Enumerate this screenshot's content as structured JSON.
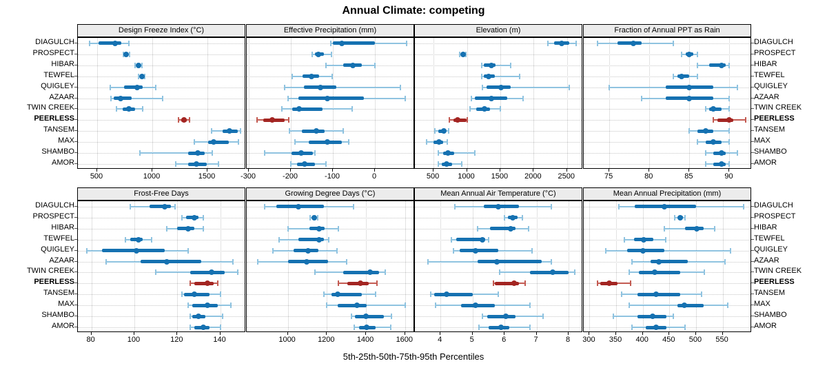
{
  "title": "Annual Climate: competing",
  "caption": "5th-25th-50th-75th-95th Percentiles",
  "chart_data": {
    "type": "dotplot-percentiles",
    "title": "Annual Climate: competing",
    "caption": "5th-25th-50th-75th-95th Percentiles",
    "percentiles": [
      5,
      25,
      50,
      75,
      95
    ],
    "sites": [
      "DIAGULCH",
      "PROSPECT",
      "HIBAR",
      "TEWFEL",
      "QUIGLEY",
      "AZAAR",
      "TWIN CREEK",
      "PEERLESS",
      "TANSEM",
      "MAX",
      "SHAMBO",
      "AMOR"
    ],
    "highlight_site": "PEERLESS",
    "colors": {
      "series_dark": "#1571b1",
      "series_light": "#8fc3e0",
      "highlight_dark": "#a32522",
      "highlight_light": "#c35b52"
    },
    "legend_position": "none",
    "grid": "dotted",
    "panels": [
      {
        "id": "design-freeze-index",
        "title": "Design Freeze Index (°C)",
        "xlim": [
          325,
          1850
        ],
        "tick_values": [
          500,
          1000,
          1500
        ],
        "tick_labels": [
          "500",
          "1000",
          "1500"
        ],
        "values": [
          [
            430,
            515,
            660,
            720,
            785
          ],
          [
            735,
            752,
            763,
            775,
            792
          ],
          [
            845,
            862,
            875,
            888,
            905
          ],
          [
            878,
            895,
            905,
            915,
            932
          ],
          [
            620,
            745,
            860,
            910,
            1030
          ],
          [
            625,
            650,
            715,
            810,
            1095
          ],
          [
            675,
            730,
            790,
            845,
            915
          ],
          [
            1240,
            1260,
            1285,
            1310,
            1335
          ],
          [
            1540,
            1640,
            1700,
            1775,
            1800
          ],
          [
            1380,
            1505,
            1555,
            1695,
            1780
          ],
          [
            890,
            1325,
            1410,
            1475,
            1545
          ],
          [
            1210,
            1325,
            1400,
            1495,
            1600
          ]
        ]
      },
      {
        "id": "effective-precipitation",
        "title": "Effective Precipitation (mm)",
        "xlim": [
          -305,
          95
        ],
        "tick_values": [
          -300,
          -200,
          -100,
          0
        ],
        "tick_labels": [
          "-300",
          "-200",
          "-100",
          "0"
        ],
        "values": [
          [
            -105,
            -100,
            -78,
            0,
            75
          ],
          [
            -150,
            -143,
            -135,
            -122,
            -103
          ],
          [
            -117,
            -76,
            -52,
            -32,
            0
          ],
          [
            -196,
            -172,
            -151,
            -133,
            -101
          ],
          [
            -215,
            -169,
            -129,
            -92,
            60
          ],
          [
            -207,
            -182,
            -114,
            -26,
            72
          ],
          [
            -222,
            -197,
            -180,
            -124,
            -55
          ],
          [
            -280,
            -265,
            -245,
            -215,
            -205
          ],
          [
            -203,
            -174,
            -140,
            -120,
            -76
          ],
          [
            -190,
            -158,
            -113,
            -79,
            -62
          ],
          [
            -262,
            -199,
            -175,
            -147,
            -142
          ],
          [
            -200,
            -185,
            -168,
            -142,
            -116
          ]
        ]
      },
      {
        "id": "elevation",
        "title": "Elevation (m)",
        "xlim": [
          220,
          2740
        ],
        "tick_values": [
          500,
          1000,
          1500,
          2000,
          2500
        ],
        "tick_labels": [
          "500",
          "1000",
          "1500",
          "2000",
          "2500"
        ],
        "values": [
          [
            2210,
            2310,
            2415,
            2530,
            2635
          ],
          [
            895,
            920,
            938,
            958,
            980
          ],
          [
            1225,
            1255,
            1370,
            1425,
            1655
          ],
          [
            1225,
            1250,
            1330,
            1415,
            1790
          ],
          [
            1235,
            1295,
            1515,
            1655,
            2530
          ],
          [
            1070,
            1120,
            1370,
            1600,
            1845
          ],
          [
            1050,
            1140,
            1260,
            1345,
            1500
          ],
          [
            740,
            795,
            860,
            990,
            1010
          ],
          [
            520,
            570,
            650,
            690,
            725
          ],
          [
            400,
            500,
            585,
            640,
            705
          ],
          [
            570,
            640,
            715,
            810,
            1120
          ],
          [
            570,
            620,
            700,
            775,
            920
          ]
        ]
      },
      {
        "id": "fraction-annual-ppt-rain",
        "title": "Fraction of Annual PPT as Rain",
        "xlim": [
          71.8,
          92.8
        ],
        "tick_values": [
          75,
          80,
          85,
          90
        ],
        "tick_labels": [
          "75",
          "80",
          "85",
          "90"
        ],
        "values": [
          [
            73.5,
            76,
            78,
            79,
            83
          ],
          [
            84,
            84.5,
            85,
            85.5,
            86
          ],
          [
            86,
            87.5,
            89,
            89.5,
            90
          ],
          [
            83,
            83.5,
            84,
            85,
            86
          ],
          [
            75,
            82,
            85,
            88,
            91
          ],
          [
            79,
            82,
            85,
            88,
            90
          ],
          [
            87,
            87.5,
            88,
            89,
            90
          ],
          [
            88,
            88.5,
            90,
            90.5,
            92
          ],
          [
            85,
            86,
            87,
            88,
            90
          ],
          [
            86,
            87,
            88,
            89,
            90
          ],
          [
            87,
            88,
            89,
            89.5,
            91
          ],
          [
            87,
            88,
            89,
            89.5,
            90
          ]
        ]
      },
      {
        "id": "frost-free-days",
        "title": "Frost-Free Days",
        "xlim": [
          73.7,
          152
        ],
        "tick_values": [
          80,
          100,
          120,
          140
        ],
        "tick_labels": [
          "80",
          "100",
          "120",
          "140"
        ],
        "values": [
          [
            98,
            107,
            114,
            117,
            119
          ],
          [
            122,
            124,
            128,
            130,
            132
          ],
          [
            115,
            120,
            125,
            128,
            132
          ],
          [
            96,
            98,
            102,
            104,
            108
          ],
          [
            78,
            85,
            101,
            114,
            125
          ],
          [
            87,
            103,
            115,
            131,
            146
          ],
          [
            110,
            126,
            136,
            142,
            148
          ],
          [
            126,
            128,
            134,
            137,
            139
          ],
          [
            122,
            123,
            128,
            135,
            140
          ],
          [
            125,
            127,
            134,
            139,
            145
          ],
          [
            126,
            127,
            130,
            133,
            141
          ],
          [
            126,
            128,
            132,
            135,
            140
          ]
        ]
      },
      {
        "id": "growing-degree-days",
        "title": "Growing Degree Days (°C)",
        "xlim": [
          790,
          1650
        ],
        "tick_values": [
          1000,
          1200,
          1400,
          1600
        ],
        "tick_labels": [
          "1000",
          "1200",
          "1400",
          "1600"
        ],
        "values": [
          [
            880,
            940,
            1055,
            1185,
            1335
          ],
          [
            1115,
            1125,
            1135,
            1145,
            1152
          ],
          [
            1000,
            1110,
            1160,
            1190,
            1260
          ],
          [
            955,
            1055,
            1160,
            1185,
            1210
          ],
          [
            925,
            1030,
            1105,
            1155,
            1250
          ],
          [
            845,
            1000,
            1095,
            1205,
            1300
          ],
          [
            1140,
            1285,
            1420,
            1465,
            1500
          ],
          [
            1260,
            1305,
            1370,
            1415,
            1455
          ],
          [
            1185,
            1225,
            1255,
            1380,
            1450
          ],
          [
            1200,
            1255,
            1355,
            1405,
            1600
          ],
          [
            1325,
            1345,
            1400,
            1490,
            1530
          ],
          [
            1340,
            1365,
            1405,
            1450,
            1525
          ]
        ]
      },
      {
        "id": "mean-annual-air-temperature",
        "title": "Mean Annual Air Temperature (°C)",
        "xlim": [
          3.2,
          8.45
        ],
        "tick_values": [
          4,
          5,
          6,
          7,
          8
        ],
        "tick_labels": [
          "4",
          "5",
          "6",
          "7",
          "8"
        ],
        "values": [
          [
            4.45,
            5.35,
            5.8,
            6.45,
            7.45
          ],
          [
            6.0,
            6.1,
            6.25,
            6.4,
            6.55
          ],
          [
            5.15,
            5.55,
            6.2,
            6.35,
            6.75
          ],
          [
            4.35,
            4.5,
            5.3,
            5.4,
            5.5
          ],
          [
            4.4,
            4.6,
            5.1,
            5.8,
            6.85
          ],
          [
            3.6,
            5.15,
            5.75,
            7.15,
            7.45
          ],
          [
            5.85,
            6.8,
            7.5,
            8.0,
            8.2
          ],
          [
            5.65,
            5.7,
            6.3,
            6.45,
            6.65
          ],
          [
            3.7,
            3.8,
            4.2,
            5.0,
            5.8
          ],
          [
            3.85,
            4.65,
            5.1,
            5.7,
            6.8
          ],
          [
            5.3,
            5.45,
            6.05,
            6.35,
            7.2
          ],
          [
            5.2,
            5.5,
            5.9,
            6.15,
            6.8
          ]
        ]
      },
      {
        "id": "mean-annual-precipitation",
        "title": "Mean Annual Precipitation (mm)",
        "xlim": [
          289,
          605
        ],
        "tick_values": [
          300,
          350,
          400,
          450,
          500,
          550
        ],
        "tick_labels": [
          "300",
          "350",
          "400",
          "450",
          "500",
          "550"
        ],
        "values": [
          [
            355,
            385,
            440,
            500,
            590
          ],
          [
            460,
            466,
            470,
            475,
            480
          ],
          [
            440,
            480,
            502,
            515,
            535
          ],
          [
            365,
            383,
            402,
            420,
            443
          ],
          [
            330,
            370,
            400,
            440,
            565
          ],
          [
            380,
            415,
            430,
            485,
            555
          ],
          [
            375,
            392,
            422,
            470,
            515
          ],
          [
            315,
            320,
            337,
            353,
            377
          ],
          [
            360,
            390,
            425,
            470,
            510
          ],
          [
            375,
            465,
            478,
            515,
            560
          ],
          [
            345,
            390,
            418,
            445,
            457
          ],
          [
            380,
            405,
            425,
            445,
            480
          ]
        ]
      }
    ]
  }
}
